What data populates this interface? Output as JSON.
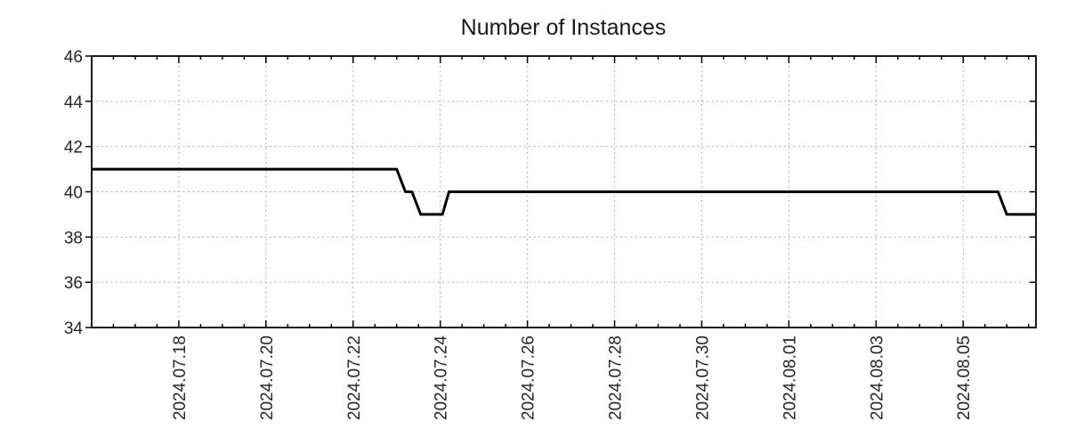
{
  "chart_data": {
    "type": "line",
    "title": "Number of Instances",
    "legend": "none",
    "grid": true,
    "x_axis": {
      "tick_labels": [
        "2024.07.18",
        "2024.07.20",
        "2024.07.22",
        "2024.07.24",
        "2024.07.26",
        "2024.07.28",
        "2024.07.30",
        "2024.08.01",
        "2024.08.03",
        "2024.08.05"
      ],
      "tick_day_offsets": [
        2,
        4,
        6,
        8,
        10,
        12,
        14,
        16,
        18,
        20
      ],
      "minor_tick_interval_days": 0.5,
      "range_day_offsets": [
        0,
        21.67
      ],
      "range_start_date": "2024-07-16 00:00",
      "range_end_date": "2024-08-06 16:00",
      "label_rotation_degrees": -90
    },
    "y_axis": {
      "tick_labels": [
        "34",
        "36",
        "38",
        "40",
        "42",
        "44",
        "46"
      ],
      "tick_values": [
        34,
        36,
        38,
        40,
        42,
        44,
        46
      ],
      "grid_values": [
        36,
        38,
        40,
        42,
        44
      ],
      "range": [
        34,
        46
      ]
    },
    "series": [
      {
        "name": "instances",
        "color": "#000000",
        "points": [
          {
            "date": "2024-07-16 00:00",
            "day": 0.0,
            "value": 41
          },
          {
            "date": "2024-07-23 00:00",
            "day": 7.0,
            "value": 41
          },
          {
            "date": "2024-07-23 05:00",
            "day": 7.2,
            "value": 40
          },
          {
            "date": "2024-07-23 08:00",
            "day": 7.35,
            "value": 40
          },
          {
            "date": "2024-07-23 13:00",
            "day": 7.55,
            "value": 39
          },
          {
            "date": "2024-07-24 01:00",
            "day": 8.05,
            "value": 39
          },
          {
            "date": "2024-07-24 05:00",
            "day": 8.2,
            "value": 40
          },
          {
            "date": "2024-08-05 19:00",
            "day": 20.8,
            "value": 40
          },
          {
            "date": "2024-08-06 00:00",
            "day": 21.0,
            "value": 39
          },
          {
            "date": "2024-08-06 16:00",
            "day": 21.67,
            "value": 39
          }
        ]
      }
    ],
    "colors": {
      "line": "#000000",
      "grid": "#ababab",
      "axis": "#000000",
      "tick_label": "#262626",
      "title": "#1a1a1a",
      "background": "#ffffff"
    }
  }
}
